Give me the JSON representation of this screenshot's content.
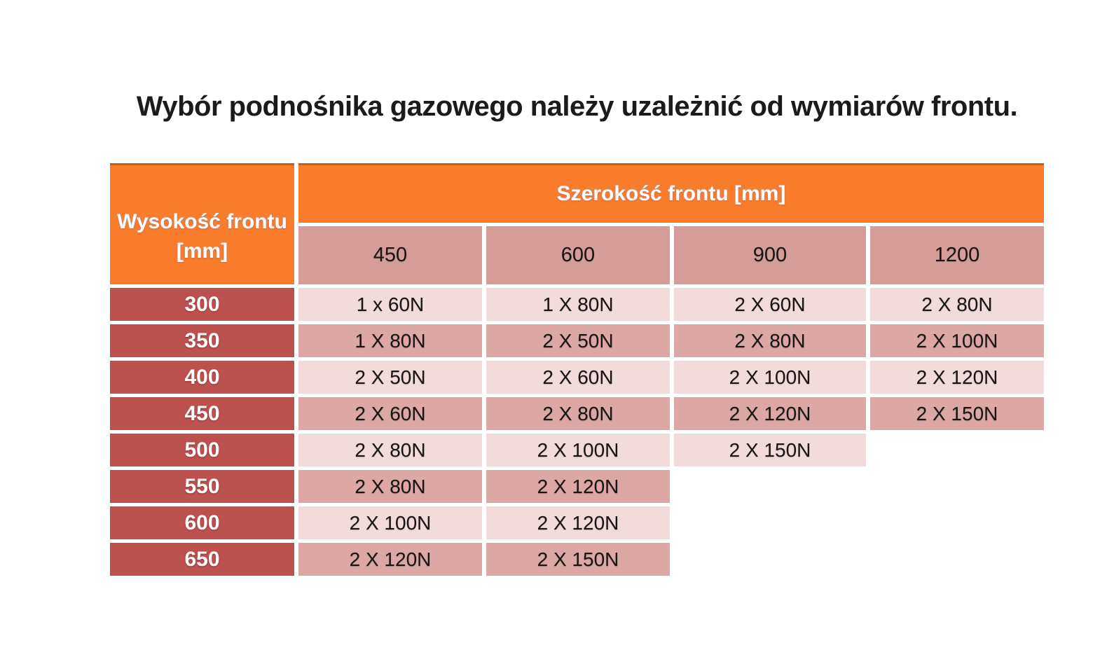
{
  "title": "Wybór podnośnika gazowego należy uzależnić od wymiarów frontu.",
  "colors": {
    "orange_header": "#F97D2B",
    "orange_border": "#BF5E1E",
    "row_header_red": "#BD514E",
    "subheader_pink": "#D59C9A",
    "row_dark_pink": "#DCA7A5",
    "row_light_pink": "#F2DCDB",
    "background": "#FFFFFF",
    "text": "#161616"
  },
  "table": {
    "corner_header_line1": "Wysokość frontu",
    "corner_header_line2": "[mm]",
    "col_group_header": "Szerokość frontu [mm]",
    "column_headers": [
      "450",
      "600",
      "900",
      "1200"
    ],
    "rows": [
      {
        "height": "300",
        "cells": [
          "1 x 60N",
          "1 X 80N",
          "2 X 60N",
          "2 X 80N"
        ]
      },
      {
        "height": "350",
        "cells": [
          "1 X 80N",
          "2 X 50N",
          "2 X 80N",
          "2 X 100N"
        ]
      },
      {
        "height": "400",
        "cells": [
          "2 X 50N",
          "2 X 60N",
          "2 X 100N",
          "2 X 120N"
        ]
      },
      {
        "height": "450",
        "cells": [
          "2 X 60N",
          "2 X 80N",
          "2 X 120N",
          "2 X 150N"
        ]
      },
      {
        "height": "500",
        "cells": [
          "2 X 80N",
          "2 X 100N",
          "2 X 150N"
        ]
      },
      {
        "height": "550",
        "cells": [
          "2 X 80N",
          "2 X 120N"
        ]
      },
      {
        "height": "600",
        "cells": [
          "2 X 100N",
          "2 X 120N"
        ]
      },
      {
        "height": "650",
        "cells": [
          "2 X 120N",
          "2 X 150N"
        ]
      }
    ]
  },
  "chart_data": {
    "type": "table",
    "title": "Wybór podnośnika gazowego należy uzależnić od wymiarów frontu.",
    "row_axis_label": "Wysokość frontu [mm]",
    "col_axis_label": "Szerokość frontu [mm]",
    "columns": [
      "450",
      "600",
      "900",
      "1200"
    ],
    "row_categories": [
      "300",
      "350",
      "400",
      "450",
      "500",
      "550",
      "600",
      "650"
    ],
    "values": [
      [
        "1 x 60N",
        "1 X 80N",
        "2 X 60N",
        "2 X 80N"
      ],
      [
        "1 X 80N",
        "2 X 50N",
        "2 X 80N",
        "2 X 100N"
      ],
      [
        "2 X 50N",
        "2 X 60N",
        "2 X 100N",
        "2 X 120N"
      ],
      [
        "2 X 60N",
        "2 X 80N",
        "2 X 120N",
        "2 X 150N"
      ],
      [
        "2 X 80N",
        "2 X 100N",
        "2 X 150N",
        null
      ],
      [
        "2 X 80N",
        "2 X 120N",
        null,
        null
      ],
      [
        "2 X 100N",
        "2 X 120N",
        null,
        null
      ],
      [
        "2 X 120N",
        "2 X 150N",
        null,
        null
      ]
    ]
  }
}
